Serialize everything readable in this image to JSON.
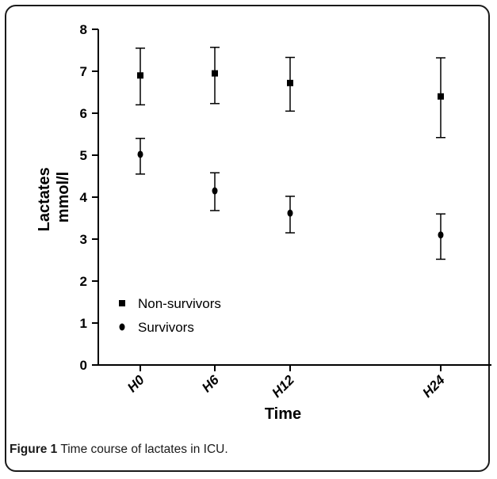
{
  "caption": {
    "label": "Figure 1",
    "text": "Time course of lactates in ICU."
  },
  "chart_data": {
    "type": "scatter",
    "categories": [
      "H0",
      "H6",
      "H12",
      "H24"
    ],
    "x": [
      0,
      6,
      12,
      24
    ],
    "xlabel": "Time",
    "ylabel": [
      "Lactates",
      "mmol/l"
    ],
    "ylim": [
      0,
      8
    ],
    "yticks": [
      0,
      1,
      2,
      3,
      4,
      5,
      6,
      7,
      8
    ],
    "grid": false,
    "legend_position": "lower-left",
    "series": [
      {
        "name": "Non-survivors",
        "marker": "square",
        "color": "#000000",
        "values": [
          6.9,
          6.95,
          6.72,
          6.4
        ],
        "error_low": [
          6.2,
          6.23,
          6.05,
          5.42
        ],
        "error_high": [
          7.55,
          7.57,
          7.33,
          7.32
        ]
      },
      {
        "name": "Survivors",
        "marker": "circle",
        "color": "#000000",
        "values": [
          5.02,
          4.15,
          3.62,
          3.1
        ],
        "error_low": [
          4.55,
          3.68,
          3.15,
          2.52
        ],
        "error_high": [
          5.4,
          4.58,
          4.02,
          3.6
        ]
      }
    ]
  }
}
